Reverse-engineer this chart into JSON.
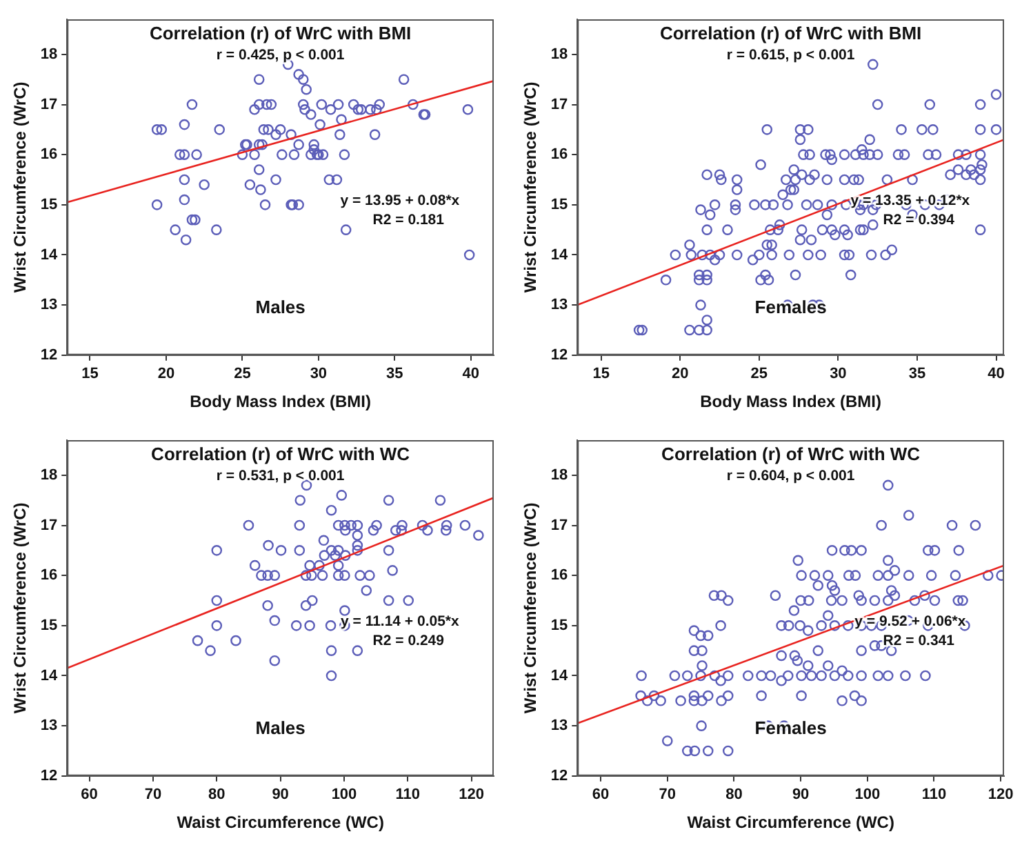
{
  "chart_data": [
    {
      "type": "scatter",
      "title": "Correlation (r) of WrC with BMI",
      "xlabel": "Body Mass Index (BMI)",
      "ylabel": "Wrist Circumference (WrC)",
      "annotations": [
        "r = 0.425, p < 0.001",
        "y = 13.95 + 0.08*x",
        "R2 = 0.181",
        "Males"
      ],
      "xlim": [
        13.5,
        41.5
      ],
      "xticks": [
        15,
        20,
        25,
        30,
        35,
        40
      ],
      "ylim": [
        12,
        18.7
      ],
      "yticks": [
        12,
        13,
        14,
        15,
        16,
        17,
        18
      ],
      "grid": false,
      "legend": false,
      "marker": "circle",
      "series": [
        {
          "color": "#5b5db8",
          "x": [
            19.4,
            19.7,
            21.7,
            21.2,
            23.5,
            20.9,
            21.2,
            22.0,
            21.2,
            22.5,
            19.4,
            21.2,
            21.7,
            21.9,
            20.6,
            21.3,
            23.3,
            26.1,
            26.1,
            26.6,
            26.9,
            25.8,
            26.4,
            26.7,
            27.5,
            27.2,
            28.2,
            25.2,
            25.3,
            26.1,
            26.3,
            25.0,
            25.8,
            27.6,
            28.4,
            26.1,
            25.5,
            26.2,
            27.2,
            26.5,
            28.2,
            28.3,
            28.7,
            28.0,
            28.7,
            29.0,
            29.2,
            29.0,
            30.2,
            29.1,
            29.5,
            30.1,
            28.7,
            29.7,
            29.7,
            29.5,
            29.9,
            30.0,
            30.3,
            30.8,
            31.3,
            31.5,
            31.4,
            31.7,
            30.7,
            31.2,
            31.8,
            32.3,
            32.6,
            32.8,
            33.4,
            33.8,
            34.0,
            33.7,
            35.6,
            36.2,
            36.9,
            37.0,
            39.8,
            39.9
          ],
          "values": [
            16.5,
            16.5,
            17.0,
            16.6,
            16.5,
            16.0,
            16.0,
            16.0,
            15.5,
            15.4,
            15.0,
            15.1,
            14.7,
            14.7,
            14.5,
            14.3,
            14.5,
            17.5,
            17.0,
            17.0,
            17.0,
            16.9,
            16.5,
            16.5,
            16.5,
            16.4,
            16.4,
            16.2,
            16.2,
            16.2,
            16.2,
            16.0,
            16.0,
            16.0,
            16.0,
            15.7,
            15.4,
            15.3,
            15.5,
            15.0,
            15.0,
            15.0,
            15.0,
            17.8,
            17.6,
            17.5,
            17.3,
            17.0,
            17.0,
            16.9,
            16.8,
            16.6,
            16.2,
            16.2,
            16.1,
            16.0,
            16.0,
            16.0,
            16.0,
            16.9,
            17.0,
            16.7,
            16.4,
            16.0,
            15.5,
            15.5,
            14.5,
            17.0,
            16.9,
            16.9,
            16.9,
            16.9,
            17.0,
            16.4,
            17.5,
            17.0,
            16.8,
            16.8,
            16.9,
            14.0
          ]
        },
        {
          "type": "line",
          "marker": "none",
          "color": "#e8231f",
          "x": [
            13.5,
            41.5
          ],
          "values": [
            15.05,
            17.47
          ]
        }
      ]
    },
    {
      "type": "scatter",
      "title": "Correlation (r) of WrC with BMI",
      "xlabel": "Body Mass Index (BMI)",
      "ylabel": "Wrist Circumference (WrC)",
      "annotations": [
        "r = 0.615, p < 0.001",
        "y = 13.35 + 0.12*x",
        "R2 = 0.394",
        "Females"
      ],
      "xlim": [
        13.5,
        40.5
      ],
      "xticks": [
        15,
        20,
        25,
        30,
        35,
        40
      ],
      "ylim": [
        12,
        18.7
      ],
      "yticks": [
        12,
        13,
        14,
        15,
        16,
        17,
        18
      ],
      "grid": false,
      "legend": false,
      "marker": "circle",
      "series": [
        {
          "color": "#5b5db8",
          "x": [
            32.2,
            40.0,
            32.5,
            35.8,
            39.0,
            25.5,
            27.6,
            28.1,
            34.0,
            35.3,
            36.0,
            39.0,
            40.0,
            27.6,
            32.0,
            27.8,
            28.2,
            29.2,
            29.5,
            30.4,
            31.1,
            31.6,
            32.0,
            32.5,
            33.8,
            34.2,
            35.7,
            36.2,
            37.6,
            38.1,
            39.0,
            31.5,
            29.6,
            25.1,
            39.1,
            27.2,
            37.6,
            38.4,
            39.0,
            21.7,
            22.5,
            27.7,
            28.5,
            37.1,
            38.1,
            38.6,
            22.6,
            23.6,
            26.7,
            27.3,
            28.2,
            29.3,
            30.4,
            31.0,
            31.3,
            33.1,
            34.7,
            39.0,
            23.6,
            27.0,
            27.2,
            26.5,
            22.2,
            23.5,
            24.7,
            25.4,
            25.9,
            26.8,
            28.0,
            28.7,
            29.6,
            30.5,
            31.3,
            31.6,
            32.4,
            34.3,
            35.5,
            36.4,
            36.9,
            21.3,
            23.5,
            31.4,
            32.2,
            21.9,
            29.3,
            34.7,
            26.3,
            32.2,
            21.7,
            23.0,
            25.7,
            26.2,
            27.7,
            29.0,
            29.6,
            30.4,
            31.4,
            31.6,
            39.0,
            29.8,
            30.6,
            27.6,
            28.3,
            20.6,
            25.5,
            25.8,
            33.4,
            19.7,
            20.7,
            21.4,
            21.9,
            22.5,
            23.6,
            25.0,
            25.8,
            26.9,
            28.1,
            28.9,
            30.4,
            30.7,
            32.1,
            33.0,
            22.2,
            24.6,
            21.2,
            21.7,
            25.4,
            27.3,
            30.8,
            19.1,
            21.2,
            21.7,
            25.1,
            25.6,
            21.3,
            26.8,
            28.4,
            28.8,
            21.7,
            17.4,
            17.6,
            20.6,
            21.2,
            21.7
          ],
          "values": [
            17.8,
            17.2,
            17.0,
            17.0,
            17.0,
            16.5,
            16.5,
            16.5,
            16.5,
            16.5,
            16.5,
            16.5,
            16.5,
            16.3,
            16.3,
            16.0,
            16.0,
            16.0,
            16.0,
            16.0,
            16.0,
            16.0,
            16.0,
            16.0,
            16.0,
            16.0,
            16.0,
            16.0,
            16.0,
            16.0,
            16.0,
            16.1,
            15.9,
            15.8,
            15.8,
            15.7,
            15.7,
            15.7,
            15.7,
            15.6,
            15.6,
            15.6,
            15.6,
            15.6,
            15.6,
            15.6,
            15.5,
            15.5,
            15.5,
            15.5,
            15.5,
            15.5,
            15.5,
            15.5,
            15.5,
            15.5,
            15.5,
            15.5,
            15.3,
            15.3,
            15.3,
            15.2,
            15.0,
            15.0,
            15.0,
            15.0,
            15.0,
            15.0,
            15.0,
            15.0,
            15.0,
            15.0,
            15.0,
            15.0,
            15.0,
            15.0,
            15.0,
            15.0,
            15.1,
            14.9,
            14.9,
            14.9,
            14.9,
            14.8,
            14.8,
            14.8,
            14.6,
            14.6,
            14.5,
            14.5,
            14.5,
            14.5,
            14.5,
            14.5,
            14.5,
            14.5,
            14.5,
            14.5,
            14.5,
            14.4,
            14.4,
            14.3,
            14.3,
            14.2,
            14.2,
            14.2,
            14.1,
            14.0,
            14.0,
            14.0,
            14.0,
            14.0,
            14.0,
            14.0,
            14.0,
            14.0,
            14.0,
            14.0,
            14.0,
            14.0,
            14.0,
            14.0,
            13.9,
            13.9,
            13.6,
            13.6,
            13.6,
            13.6,
            13.6,
            13.5,
            13.5,
            13.5,
            13.5,
            13.5,
            13.0,
            13.0,
            13.0,
            13.0,
            12.7,
            12.5,
            12.5,
            12.5,
            12.5,
            12.5
          ]
        },
        {
          "type": "line",
          "marker": "none",
          "color": "#e8231f",
          "x": [
            13.5,
            40.5
          ],
          "values": [
            13.0,
            16.3
          ]
        }
      ]
    },
    {
      "type": "scatter",
      "title": "Correlation (r) of WrC with WC",
      "xlabel": "Waist Circumference (WC)",
      "ylabel": "Wrist Circumference (WrC)",
      "annotations": [
        "r = 0.531, p < 0.001",
        "y = 11.14 + 0.05*x",
        "R2 = 0.249",
        "Males"
      ],
      "xlim": [
        56.5,
        123.5
      ],
      "xticks": [
        60,
        70,
        80,
        90,
        100,
        110,
        120
      ],
      "ylim": [
        12,
        18.7
      ],
      "yticks": [
        12,
        13,
        14,
        15,
        16,
        17,
        18
      ],
      "grid": false,
      "legend": false,
      "marker": "circle",
      "series": [
        {
          "color": "#5b5db8",
          "x": [
            94.1,
            93.1,
            99.6,
            107.0,
            115.1,
            98.0,
            85.0,
            93.0,
            99.1,
            100.1,
            101.1,
            102.1,
            105.1,
            109.1,
            112.3,
            116.1,
            119.0,
            100.2,
            104.6,
            108.1,
            109.0,
            113.1,
            116.0,
            102.1,
            121.1,
            96.8,
            88.1,
            102.1,
            80.0,
            90.1,
            93.0,
            98.0,
            99.1,
            102.1,
            107.0,
            96.9,
            98.6,
            100.2,
            86.0,
            94.6,
            96.1,
            99.1,
            87.0,
            88.0,
            89.1,
            94.0,
            94.9,
            96.6,
            99.1,
            100.1,
            102.5,
            104.0,
            107.6,
            103.5,
            80.0,
            95.0,
            107.0,
            110.1,
            88.0,
            94.0,
            100.1,
            80.0,
            92.5,
            94.6,
            97.9,
            100.1,
            89.1,
            77.0,
            83.0,
            79.0,
            98.0,
            102.1,
            89.1,
            98.0
          ],
          "values": [
            17.8,
            17.5,
            17.6,
            17.5,
            17.5,
            17.3,
            17.0,
            17.0,
            17.0,
            17.0,
            17.0,
            17.0,
            17.0,
            17.0,
            17.0,
            17.0,
            17.0,
            16.9,
            16.9,
            16.9,
            16.9,
            16.9,
            16.9,
            16.8,
            16.8,
            16.7,
            16.6,
            16.6,
            16.5,
            16.5,
            16.5,
            16.5,
            16.5,
            16.5,
            16.5,
            16.4,
            16.4,
            16.4,
            16.2,
            16.2,
            16.2,
            16.2,
            16.0,
            16.0,
            16.0,
            16.0,
            16.0,
            16.0,
            16.0,
            16.0,
            16.0,
            16.0,
            16.1,
            15.7,
            15.5,
            15.5,
            15.5,
            15.5,
            15.4,
            15.4,
            15.3,
            15.0,
            15.0,
            15.0,
            15.0,
            15.0,
            15.1,
            14.7,
            14.7,
            14.5,
            14.5,
            14.5,
            14.3,
            14.0
          ]
        },
        {
          "type": "line",
          "marker": "none",
          "color": "#e8231f",
          "x": [
            56.5,
            123.5
          ],
          "values": [
            14.15,
            17.55
          ]
        }
      ]
    },
    {
      "type": "scatter",
      "title": "Correlation (r) of WrC with WC",
      "xlabel": "Waist Circumference (WC)",
      "ylabel": "Wrist Circumference (WrC)",
      "annotations": [
        "r = 0.604, p < 0.001",
        "y = 9.52 + 0.06*x",
        "R2 = 0.341",
        "Females"
      ],
      "xlim": [
        56.5,
        120.5
      ],
      "xticks": [
        60,
        70,
        80,
        90,
        100,
        110,
        120
      ],
      "ylim": [
        12,
        18.7
      ],
      "yticks": [
        12,
        13,
        14,
        15,
        16,
        17,
        18
      ],
      "grid": false,
      "legend": false,
      "marker": "circle",
      "series": [
        {
          "color": "#5b5db8",
          "x": [
            103.1,
            106.2,
            102.1,
            112.7,
            116.2,
            94.7,
            96.6,
            97.6,
            99.1,
            109.1,
            110.1,
            113.7,
            89.6,
            103.1,
            90.1,
            92.1,
            94.1,
            97.2,
            98.2,
            101.6,
            103.1,
            106.2,
            109.6,
            113.2,
            118.1,
            120.1,
            104.1,
            92.6,
            94.7,
            95.1,
            103.6,
            77.0,
            78.1,
            86.2,
            98.7,
            104.1,
            108.6,
            79.1,
            90.0,
            91.2,
            94.6,
            96.2,
            99.1,
            101.1,
            103.1,
            107.1,
            110.1,
            113.6,
            114.3,
            94.1,
            89.0,
            78.0,
            87.1,
            88.2,
            89.9,
            93.1,
            95.1,
            97.1,
            99.1,
            100.6,
            102.1,
            109.1,
            114.6,
            91.1,
            106.1,
            74.0,
            75.0,
            76.1,
            87.1,
            89.1,
            92.6,
            91.1,
            101.1,
            102.1,
            103.6,
            74.0,
            75.2,
            75.2,
            94.1,
            99.1,
            89.5,
            66.1,
            71.1,
            73.0,
            75.0,
            77.1,
            79.1,
            82.1,
            84.1,
            85.5,
            88.1,
            90.1,
            91.6,
            93.1,
            95.1,
            97.1,
            99.1,
            101.6,
            103.1,
            105.7,
            108.7,
            87.1,
            78.0,
            96.2,
            66.0,
            68.0,
            74.0,
            76.1,
            79.1,
            84.1,
            90.1,
            98.1,
            67.0,
            69.0,
            72.0,
            74.0,
            75.2,
            78.1,
            96.2,
            99.1,
            75.1,
            84.1,
            85.1,
            87.5,
            70.0,
            73.0,
            74.1,
            76.1,
            79.1
          ],
          "values": [
            17.8,
            17.2,
            17.0,
            17.0,
            17.0,
            16.5,
            16.5,
            16.5,
            16.5,
            16.5,
            16.5,
            16.5,
            16.3,
            16.3,
            16.0,
            16.0,
            16.0,
            16.0,
            16.0,
            16.0,
            16.0,
            16.0,
            16.0,
            16.0,
            16.0,
            16.0,
            16.1,
            15.8,
            15.8,
            15.7,
            15.7,
            15.6,
            15.6,
            15.6,
            15.6,
            15.6,
            15.6,
            15.5,
            15.5,
            15.5,
            15.5,
            15.5,
            15.5,
            15.5,
            15.5,
            15.5,
            15.5,
            15.5,
            15.5,
            15.2,
            15.3,
            15.0,
            15.0,
            15.0,
            15.0,
            15.0,
            15.0,
            15.0,
            15.0,
            15.0,
            15.0,
            15.0,
            15.0,
            14.9,
            15.1,
            14.9,
            14.8,
            14.8,
            14.4,
            14.4,
            14.5,
            14.2,
            14.6,
            14.6,
            14.5,
            14.5,
            14.5,
            14.2,
            14.2,
            14.5,
            14.3,
            14.0,
            14.0,
            14.0,
            14.0,
            14.0,
            14.0,
            14.0,
            14.0,
            14.0,
            14.0,
            14.0,
            14.0,
            14.0,
            14.0,
            14.0,
            14.0,
            14.0,
            14.0,
            14.0,
            14.0,
            13.9,
            13.9,
            14.1,
            13.6,
            13.6,
            13.6,
            13.6,
            13.6,
            13.6,
            13.6,
            13.6,
            13.5,
            13.5,
            13.5,
            13.5,
            13.5,
            13.5,
            13.5,
            13.5,
            13.0,
            13.0,
            13.0,
            13.0,
            12.7,
            12.5,
            12.5,
            12.5,
            12.5
          ]
        },
        {
          "type": "line",
          "marker": "none",
          "color": "#e8231f",
          "x": [
            56.5,
            120.5
          ],
          "values": [
            13.05,
            16.2
          ]
        }
      ]
    }
  ]
}
